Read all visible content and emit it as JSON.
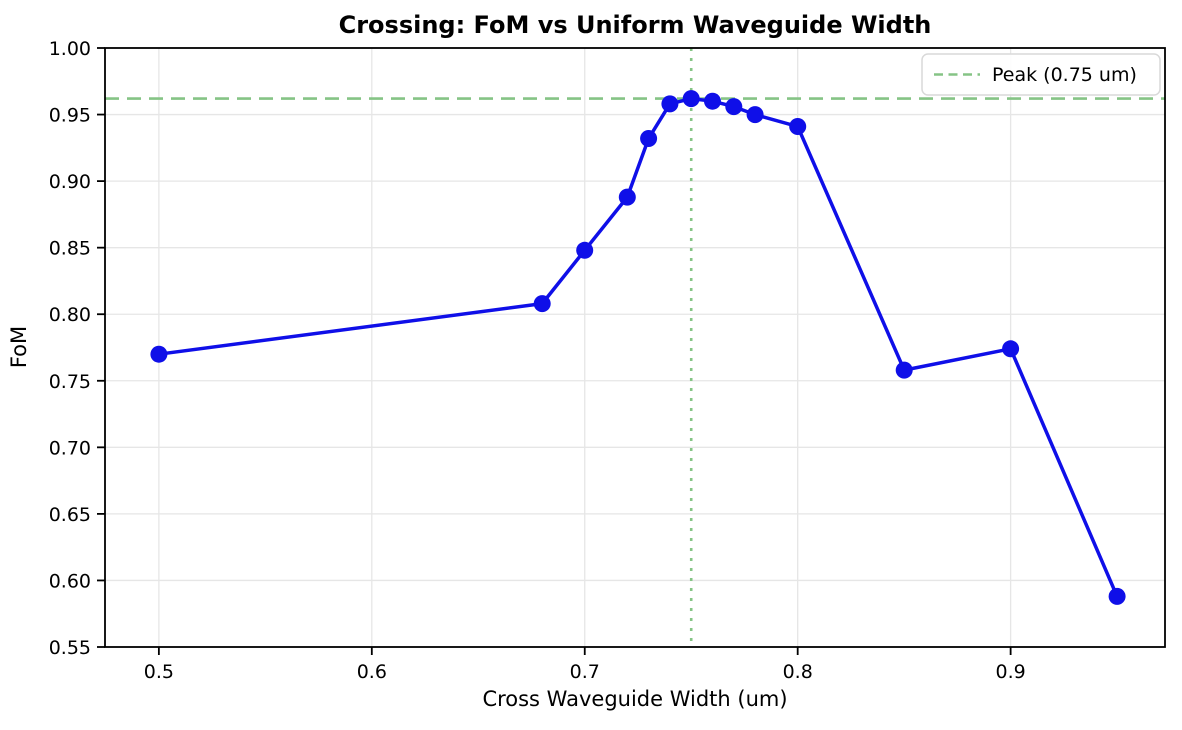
{
  "chart_data": {
    "type": "line",
    "title": "Crossing: FoM vs Uniform Waveguide Width",
    "xlabel": "Cross Waveguide Width (um)",
    "ylabel": "FoM",
    "series": [
      {
        "name": "FoM",
        "color": "#0f0fe8",
        "marker": "circle",
        "x": [
          0.5,
          0.68,
          0.7,
          0.72,
          0.73,
          0.74,
          0.75,
          0.76,
          0.77,
          0.78,
          0.8,
          0.85,
          0.9,
          0.95
        ],
        "y": [
          0.77,
          0.808,
          0.848,
          0.888,
          0.932,
          0.958,
          0.962,
          0.96,
          0.956,
          0.95,
          0.941,
          0.758,
          0.774,
          0.588
        ]
      }
    ],
    "peak": {
      "x": 0.75,
      "y": 0.962,
      "color": "#85c485",
      "hline_style": "dashed",
      "vline_style": "dotted"
    },
    "legend": {
      "position": "upper right",
      "entries": [
        {
          "label": "Peak (0.75 um)",
          "color": "#85c485",
          "style": "dashed"
        }
      ]
    },
    "xlim": [
      0.4747,
      0.9725
    ],
    "ylim": [
      0.55,
      1.0
    ],
    "xticks": [
      0.5,
      0.6,
      0.7,
      0.8,
      0.9
    ],
    "xtick_labels": [
      "0.5",
      "0.6",
      "0.7",
      "0.8",
      "0.9"
    ],
    "yticks": [
      0.55,
      0.6,
      0.65,
      0.7,
      0.75,
      0.8,
      0.85,
      0.9,
      0.95,
      1.0
    ],
    "ytick_labels": [
      "0.55",
      "0.60",
      "0.65",
      "0.70",
      "0.75",
      "0.80",
      "0.85",
      "0.90",
      "0.95",
      "1.00"
    ],
    "grid": true,
    "grid_color": "#e6e6e6",
    "spine_color": "#000000",
    "background_color": "#ffffff"
  }
}
